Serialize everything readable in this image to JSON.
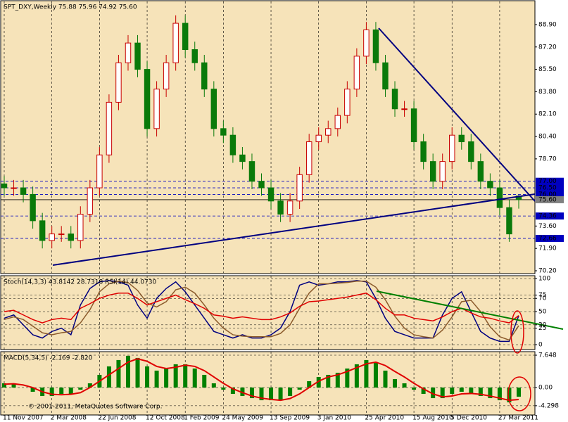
{
  "chart_data": [
    {
      "type": "candlestick",
      "title": "SPT_DXY,Weekly  75.88 75.96 74.92 75.60",
      "categories": [
        "11 Nov 2007",
        null,
        null,
        null,
        null,
        "2 Mar 2008",
        null,
        null,
        null,
        null,
        "22 Jun 2008",
        null,
        null,
        null,
        null,
        "12 Oct 2008",
        null,
        null,
        null,
        "1 Feb 2009",
        null,
        null,
        null,
        "24 May 2009",
        null,
        null,
        null,
        null,
        "13 Sep 2009",
        null,
        null,
        null,
        null,
        "3 Jan 2010",
        null,
        null,
        null,
        null,
        "25 Apr 2010",
        null,
        null,
        null,
        null,
        "15 Aug 2010",
        null,
        null,
        null,
        "5 Dec 2010",
        null,
        null,
        null,
        null,
        "27 Mar 2011",
        null,
        null
      ],
      "open": [
        76.8,
        76.5,
        76.5,
        76,
        74,
        72.5,
        73,
        73,
        72.5,
        74.5,
        76.5,
        79,
        83,
        86,
        87.5,
        85.5,
        81,
        84,
        86,
        89,
        87,
        86,
        84,
        81,
        80.5,
        79,
        78.5,
        77,
        76.5,
        75.5,
        74.5,
        75.5,
        77.5,
        80,
        80.5,
        81,
        82,
        84,
        86.5,
        88.5,
        86,
        84,
        82.5,
        82.5,
        80,
        78.5,
        77,
        78.5,
        80.5,
        80,
        78.5,
        77,
        76.5,
        75,
        75.88
      ],
      "high": [
        77.4,
        77.1,
        77.1,
        76.6,
        74.6,
        73.6,
        73.6,
        73.6,
        75.1,
        77.1,
        79.6,
        83.6,
        86.6,
        88.1,
        88.1,
        86.1,
        84.6,
        86.6,
        89.6,
        89.6,
        87.6,
        86.6,
        84.6,
        81.6,
        81.1,
        79.6,
        79.1,
        77.6,
        77.1,
        76.1,
        76.1,
        78.1,
        80.6,
        81.1,
        81.6,
        82.6,
        84.6,
        87.1,
        89.1,
        89.1,
        86.6,
        84.6,
        83.1,
        83.1,
        80.6,
        79.1,
        79.1,
        81.1,
        81.1,
        80.6,
        79.1,
        77.6,
        77.1,
        75.6,
        75.96
      ],
      "low": [
        75.9,
        75.9,
        75.4,
        73.4,
        71.9,
        71.9,
        72.4,
        71.9,
        71.9,
        73.9,
        75.9,
        78.4,
        82.4,
        85.4,
        84.9,
        80.4,
        80.4,
        83.4,
        85.4,
        86.4,
        85.4,
        83.4,
        80.4,
        79.9,
        78.4,
        77.9,
        76.4,
        75.9,
        74.9,
        73.9,
        73.9,
        74.9,
        76.9,
        79.4,
        79.9,
        80.4,
        81.4,
        83.4,
        85.9,
        85.4,
        83.4,
        81.9,
        81.9,
        79.4,
        77.9,
        76.4,
        76.4,
        77.9,
        79.4,
        77.9,
        76.4,
        75.9,
        74.4,
        72.4,
        74.92
      ],
      "close": [
        76.5,
        76.5,
        76,
        74,
        72.5,
        73,
        73,
        72.5,
        74.5,
        76.5,
        79,
        83,
        86,
        87.5,
        85.5,
        81,
        84,
        86,
        89,
        87,
        86,
        84,
        81,
        80.5,
        79,
        78.5,
        77,
        76.5,
        75.5,
        74.5,
        75.5,
        77.5,
        80,
        80.5,
        81,
        82,
        84,
        86.5,
        88.5,
        86,
        84,
        82.5,
        82.5,
        80,
        78.5,
        77,
        78.5,
        80.5,
        80,
        78.5,
        77,
        76.5,
        75,
        73,
        75.6
      ],
      "up_color": "#c80000",
      "down_color": "#0a7a0a",
      "ylim": [
        70.04,
        90.66
      ],
      "yticks": [
        {
          "value": 88.9,
          "label": "88.90"
        },
        {
          "value": 87.2,
          "label": "87.20"
        },
        {
          "value": 85.5,
          "label": "85.50"
        },
        {
          "value": 83.8,
          "label": "83.80"
        },
        {
          "value": 82.1,
          "label": "82.10"
        },
        {
          "value": 80.4,
          "label": "80.40"
        },
        {
          "value": 78.7,
          "label": "78.70"
        },
        {
          "value": 73.6,
          "label": "73.60"
        },
        {
          "value": 71.9,
          "label": "71.90"
        },
        {
          "value": 70.2,
          "label": "70.20"
        }
      ],
      "levels": [
        {
          "value": 77,
          "label": "77.00"
        },
        {
          "value": 76.5,
          "label": "76.50"
        },
        {
          "value": 76,
          "label": "76.00"
        },
        {
          "value": 74.36,
          "label": "74.36"
        },
        {
          "value": 72.66,
          "label": "72.66"
        }
      ],
      "current": {
        "value": 75.6,
        "label": "75.60"
      }
    },
    {
      "type": "line",
      "title": "Stoch(14,3,3) 43.8142 28.7318 RSI(14) 44.0730",
      "series": [
        {
          "color": "#000080",
          "values": [
            40,
            45,
            30,
            15,
            10,
            20,
            25,
            15,
            60,
            85,
            95,
            97,
            95,
            90,
            60,
            40,
            70,
            85,
            95,
            80,
            60,
            40,
            20,
            15,
            10,
            15,
            10,
            10,
            15,
            25,
            50,
            90,
            95,
            90,
            92,
            95,
            95,
            97,
            95,
            70,
            40,
            20,
            15,
            10,
            10,
            10,
            45,
            70,
            80,
            50,
            20,
            10,
            5,
            5,
            43.8142
          ]
        },
        {
          "color": "#8b5a2b",
          "values": [
            38,
            42,
            38,
            28,
            18,
            15,
            18,
            20,
            33,
            53,
            80,
            92,
            96,
            94,
            82,
            63,
            57,
            65,
            83,
            87,
            78,
            60,
            40,
            25,
            15,
            13,
            12,
            12,
            12,
            17,
            30,
            55,
            78,
            92,
            92,
            93,
            94,
            96,
            96,
            87,
            68,
            43,
            25,
            15,
            12,
            10,
            22,
            42,
            65,
            67,
            50,
            27,
            12,
            7,
            28.7318
          ]
        },
        {
          "color": "#e00000",
          "values": [
            50,
            52,
            45,
            38,
            33,
            38,
            40,
            38,
            55,
            62,
            70,
            75,
            78,
            78,
            70,
            60,
            65,
            70,
            75,
            68,
            62,
            55,
            45,
            43,
            40,
            42,
            40,
            38,
            38,
            42,
            48,
            58,
            65,
            66,
            68,
            70,
            72,
            75,
            78,
            68,
            55,
            45,
            45,
            40,
            38,
            36,
            42,
            50,
            55,
            48,
            42,
            40,
            36,
            33,
            44.073
          ]
        }
      ],
      "ylim": [
        -7.4,
        104.3
      ],
      "yticks": [
        100,
        75,
        70,
        50,
        30,
        25,
        0
      ]
    },
    {
      "type": "macd",
      "title": "MACD(5,34,5) -2.169 -2.820",
      "series": [
        {
          "type": "bar",
          "color": "#008000",
          "values": [
            1,
            0.8,
            0,
            -1,
            -2,
            -2,
            -1.5,
            -1.5,
            -0.5,
            1,
            3,
            5,
            6.5,
            7.5,
            7,
            5,
            4,
            4.5,
            5.5,
            5.5,
            4.5,
            3,
            1,
            -0.5,
            -1.5,
            -2,
            -2.5,
            -3,
            -3,
            -3,
            -2,
            -0.5,
            1.5,
            2.5,
            3,
            3.5,
            4.5,
            5.5,
            6.5,
            6,
            4,
            2,
            1,
            -0.5,
            -1.5,
            -2.5,
            -2.5,
            -1.5,
            -1,
            -1.5,
            -2,
            -2.5,
            -3,
            -3.5,
            -2.169
          ]
        },
        {
          "type": "line",
          "color": "#e00000",
          "values": [
            0.8,
            0.9,
            0.6,
            0,
            -1,
            -1.6,
            -1.7,
            -1.6,
            -1.2,
            0,
            1.5,
            3,
            4.5,
            6,
            6.8,
            6.2,
            5,
            4.5,
            4.8,
            5.3,
            5,
            4,
            2.5,
            1,
            -0.3,
            -1.2,
            -2,
            -2.5,
            -2.8,
            -3,
            -2.6,
            -1.5,
            0,
            1.5,
            2.5,
            3,
            3.8,
            4.7,
            5.6,
            6,
            5.2,
            3.8,
            2.5,
            1,
            -0.3,
            -1.5,
            -2.2,
            -2,
            -1.5,
            -1.4,
            -1.6,
            -2,
            -2.5,
            -3,
            -2.82
          ]
        }
      ],
      "ylim": [
        -6.48,
        8.48
      ],
      "yticks": [
        7.648,
        {
          "value": 0,
          "label": "0.00"
        },
        -4.298
      ]
    }
  ],
  "footer": "© 2001-2011, MetaQuotes Software Corp."
}
